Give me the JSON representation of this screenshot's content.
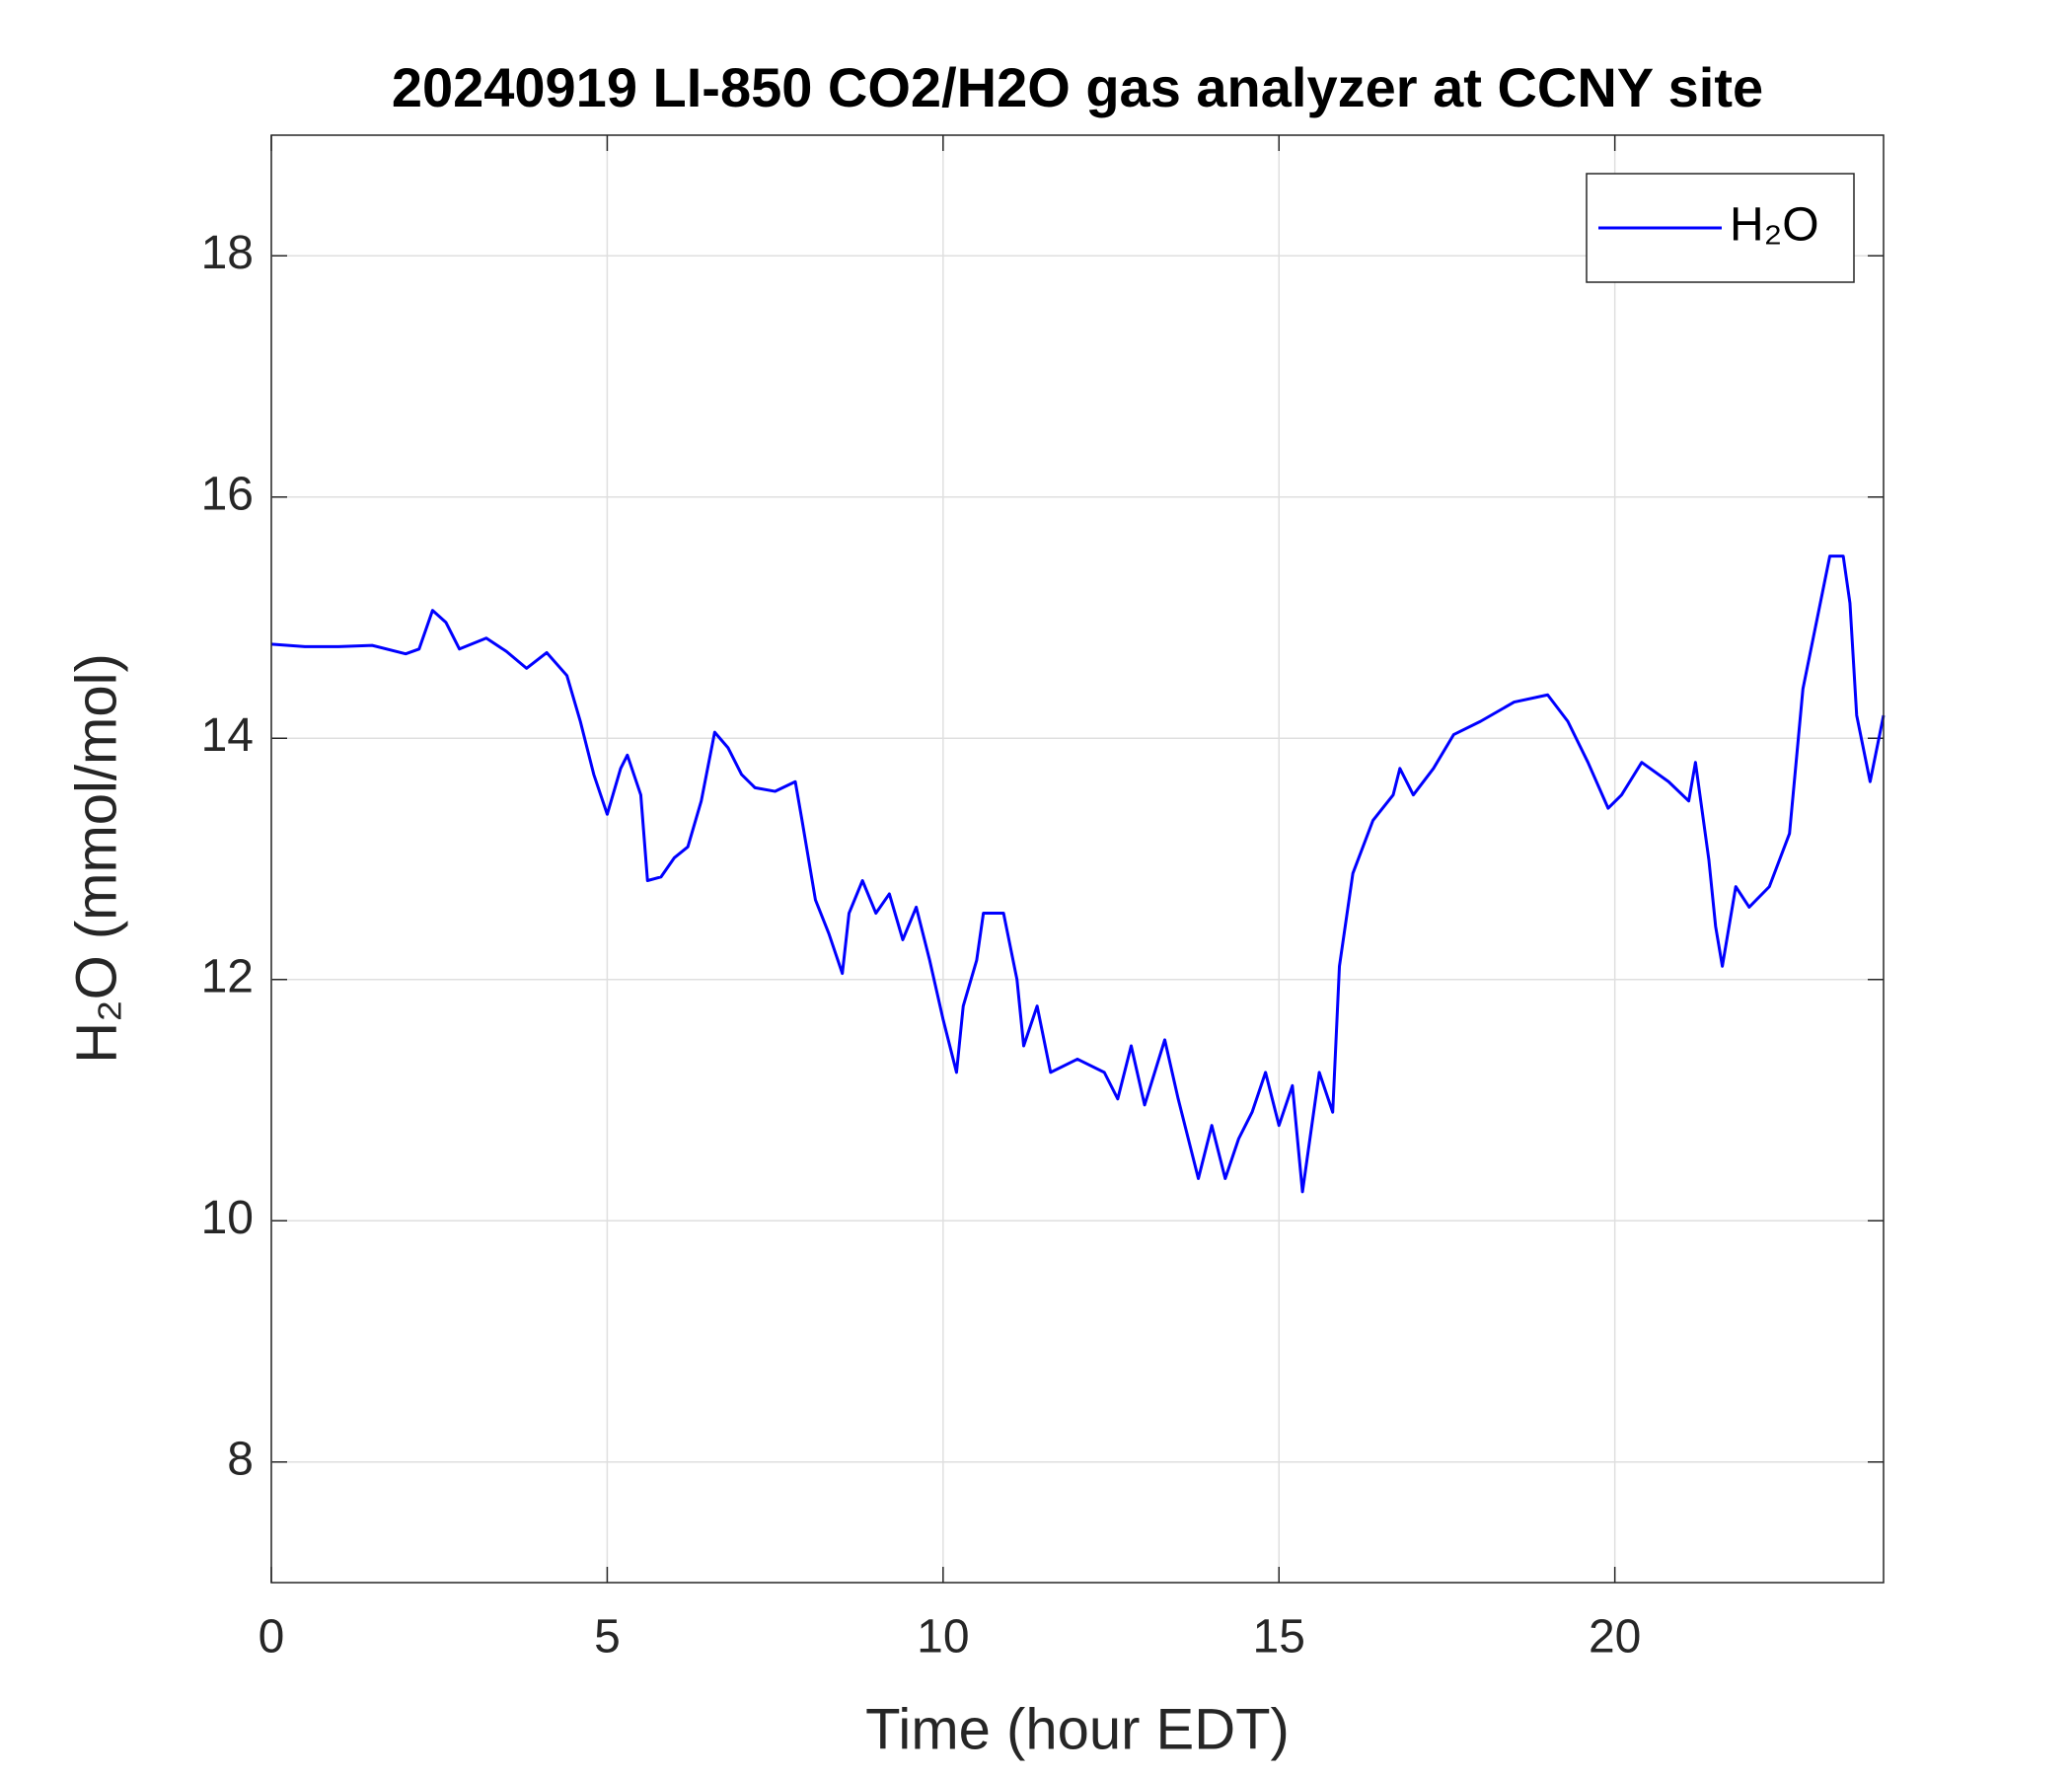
{
  "chart_data": {
    "type": "line",
    "title": "20240919 LI-850 CO2/H2O gas analyzer at CCNY site",
    "xlabel": "Time (hour EDT)",
    "ylabel": "H₂O (mmol/mol)",
    "x": [
      0,
      0.5,
      1,
      1.5,
      2,
      2.2,
      2.4,
      2.6,
      2.8,
      3.2,
      3.5,
      3.8,
      4.1,
      4.4,
      4.6,
      4.8,
      5.0,
      5.2,
      5.3,
      5.5,
      5.6,
      5.8,
      6.0,
      6.2,
      6.4,
      6.6,
      6.8,
      7.0,
      7.2,
      7.5,
      7.8,
      7.9,
      8.1,
      8.3,
      8.5,
      8.6,
      8.8,
      9.0,
      9.2,
      9.4,
      9.6,
      9.8,
      10.0,
      10.1,
      10.2,
      10.3,
      10.5,
      10.6,
      10.9,
      11.1,
      11.2,
      11.4,
      11.6,
      12.0,
      12.4,
      12.6,
      12.8,
      13.0,
      13.3,
      13.5,
      13.8,
      14.0,
      14.2,
      14.4,
      14.6,
      14.8,
      15.0,
      15.2,
      15.35,
      15.6,
      15.8,
      15.9,
      16.1,
      16.4,
      16.7,
      16.8,
      17.0,
      17.3,
      17.6,
      18.0,
      18.5,
      19.0,
      19.3,
      19.6,
      19.9,
      20.1,
      20.4,
      20.8,
      21.1,
      21.2,
      21.4,
      21.5,
      21.6,
      21.8,
      22.0,
      22.3,
      22.6,
      22.8,
      23.0,
      23.2,
      23.4,
      23.5,
      23.6,
      23.8,
      24.0
    ],
    "series": [
      {
        "name": "H₂O",
        "color": "#0000ff",
        "values": [
          14.78,
          14.76,
          14.76,
          14.77,
          14.7,
          14.74,
          15.06,
          14.96,
          14.74,
          14.83,
          14.72,
          14.58,
          14.71,
          14.52,
          14.14,
          13.7,
          13.37,
          13.75,
          13.86,
          13.53,
          12.82,
          12.85,
          13.01,
          13.1,
          13.48,
          14.05,
          13.92,
          13.7,
          13.59,
          13.56,
          13.64,
          13.32,
          12.66,
          12.38,
          12.05,
          12.55,
          12.82,
          12.55,
          12.71,
          12.33,
          12.6,
          12.16,
          11.67,
          11.45,
          11.23,
          11.78,
          12.16,
          12.55,
          12.55,
          12.0,
          11.45,
          11.78,
          11.23,
          11.34,
          11.23,
          11.01,
          11.45,
          10.96,
          11.5,
          11.01,
          10.35,
          10.79,
          10.35,
          10.68,
          10.9,
          11.23,
          10.79,
          11.12,
          10.24,
          11.23,
          10.9,
          12.11,
          12.88,
          13.32,
          13.53,
          13.75,
          13.53,
          13.75,
          14.03,
          14.14,
          14.3,
          14.36,
          14.14,
          13.8,
          13.42,
          13.53,
          13.8,
          13.64,
          13.48,
          13.8,
          12.99,
          12.44,
          12.11,
          12.77,
          12.6,
          12.77,
          13.21,
          14.41,
          14.96,
          15.51,
          15.51,
          15.12,
          14.19,
          13.64,
          14.19
        ]
      }
    ],
    "xlim": [
      0,
      24
    ],
    "xticks": [
      0,
      5,
      10,
      15,
      20
    ],
    "ylim": [
      7,
      19
    ],
    "yticks": [
      8,
      10,
      12,
      14,
      16,
      18
    ],
    "grid": true,
    "legend": "northeast"
  }
}
